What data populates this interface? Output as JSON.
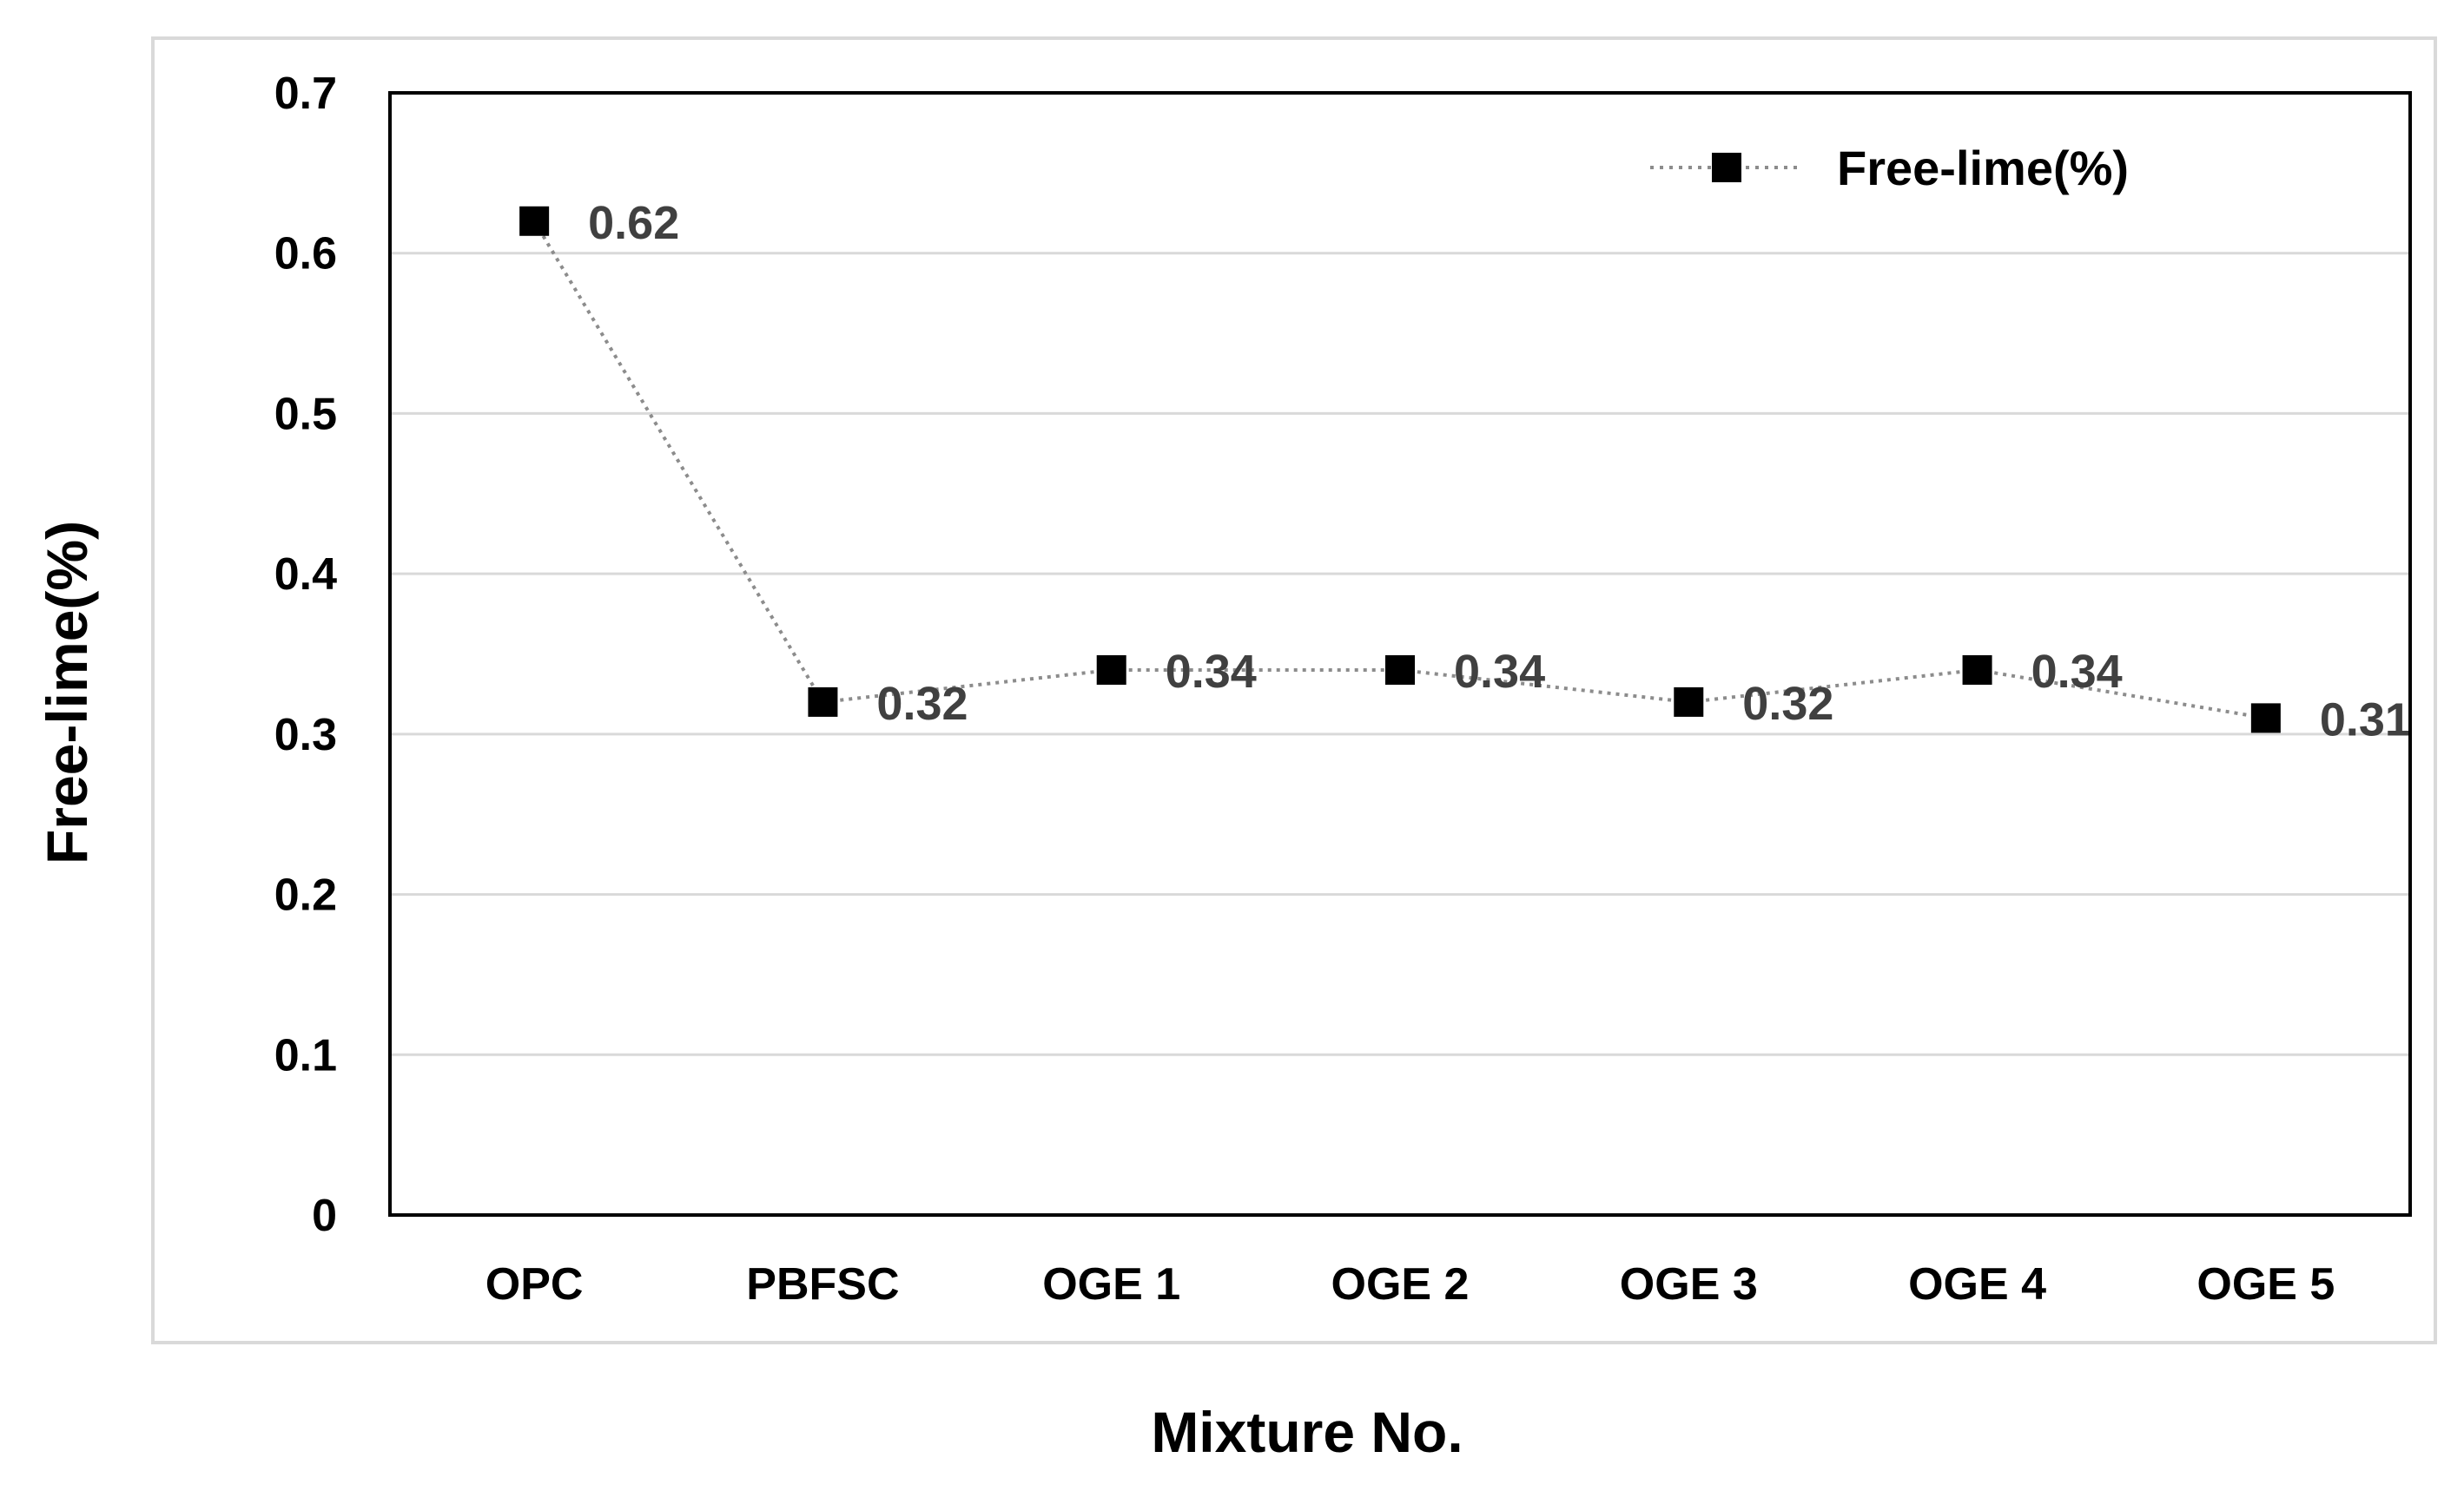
{
  "chart_data": {
    "type": "line",
    "title": "",
    "xlabel": "Mixture No.",
    "ylabel": "Free-lime(%)",
    "categories": [
      "OPC",
      "PBFSC",
      "OGE 1",
      "OGE 2",
      "OGE 3",
      "OGE 4",
      "OGE 5"
    ],
    "series": [
      {
        "name": "Free-lime(%)",
        "values": [
          0.62,
          0.32,
          0.34,
          0.34,
          0.32,
          0.34,
          0.31
        ],
        "data_labels": [
          "0.62",
          "0.32",
          "0.34",
          "0.34",
          "0.32",
          "0.34",
          "0.31"
        ],
        "color": "#000000",
        "line_color": "#8c8c8c",
        "line_style": "dotted",
        "marker": "square"
      }
    ],
    "ylim": [
      0,
      0.7
    ],
    "yticks": [
      0,
      0.1,
      0.2,
      0.3,
      0.4,
      0.5,
      0.6,
      0.7
    ],
    "ytick_labels": [
      "0",
      "0.1",
      "0.2",
      "0.3",
      "0.4",
      "0.5",
      "0.6",
      "0.7"
    ],
    "grid": true,
    "grid_color": "#d9d9d9",
    "legend": {
      "position": "top-right",
      "entries": [
        "Free-lime(%)"
      ]
    }
  }
}
